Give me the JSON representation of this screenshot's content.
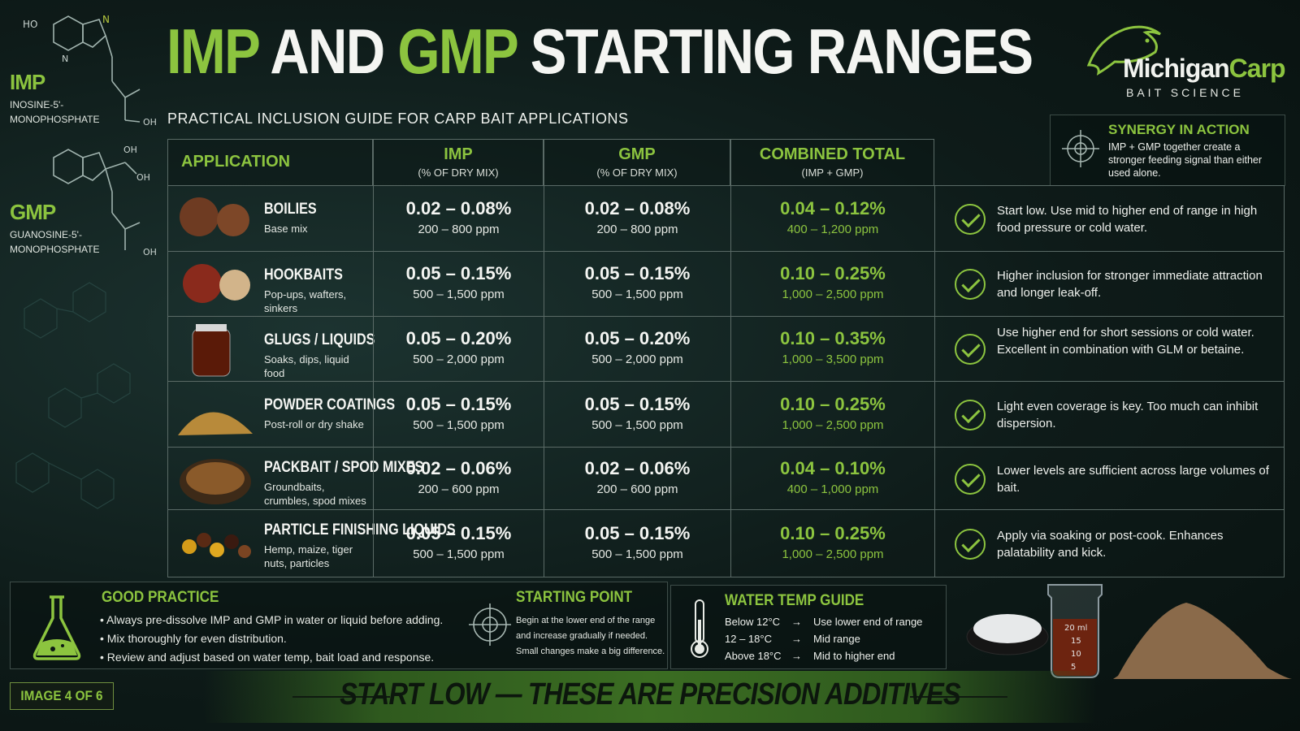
{
  "title": {
    "part1": "IMP",
    "part2": "AND",
    "part3": "GMP",
    "part4": "STARTING RANGES"
  },
  "subtitle": "PRACTICAL INCLUSION GUIDE FOR CARP BAIT APPLICATIONS",
  "brand": {
    "name_a": "Michigan",
    "name_b": "Carp",
    "tagline": "BAIT SCIENCE"
  },
  "molecules": [
    {
      "label": "IMP",
      "name_line1": "INOSINE-5'-",
      "name_line2": "MONOPHOSPHATE"
    },
    {
      "label": "GMP",
      "name_line1": "GUANOSINE-5'-",
      "name_line2": "MONOPHOSPHATE"
    }
  ],
  "synergy": {
    "title": "SYNERGY IN ACTION",
    "text": "IMP + GMP together create a stronger feeding signal than either used alone."
  },
  "table": {
    "headers": [
      {
        "title": "APPLICATION",
        "sub": ""
      },
      {
        "title": "IMP",
        "sub": "(% OF DRY MIX)"
      },
      {
        "title": "GMP",
        "sub": "(% OF DRY MIX)"
      },
      {
        "title": "COMBINED TOTAL",
        "sub": "(IMP + GMP)"
      }
    ],
    "rows": [
      {
        "name": "BOILIES",
        "sub": "Base mix",
        "imp_pct": "0.02 – 0.08%",
        "imp_ppm": "200 – 800 ppm",
        "gmp_pct": "0.02 – 0.08%",
        "gmp_ppm": "200 – 800 ppm",
        "tot_pct": "0.04 – 0.12%",
        "tot_ppm": "400 – 1,200 ppm",
        "note": "Start low. Use mid to higher end of range in high food pressure or cold water."
      },
      {
        "name": "HOOKBAITS",
        "sub": "Pop-ups, wafters, sinkers",
        "imp_pct": "0.05 – 0.15%",
        "imp_ppm": "500 – 1,500 ppm",
        "gmp_pct": "0.05 – 0.15%",
        "gmp_ppm": "500 – 1,500 ppm",
        "tot_pct": "0.10 – 0.25%",
        "tot_ppm": "1,000 – 2,500 ppm",
        "note": "Higher inclusion for stronger immediate attraction and longer leak-off."
      },
      {
        "name": "GLUGS / LIQUIDS",
        "sub": "Soaks, dips, liquid food",
        "imp_pct": "0.05 – 0.20%",
        "imp_ppm": "500 – 2,000 ppm",
        "gmp_pct": "0.05 – 0.20%",
        "gmp_ppm": "500 – 2,000 ppm",
        "tot_pct": "0.10 – 0.35%",
        "tot_ppm": "1,000 – 3,500 ppm",
        "note": "Use higher end for short sessions or cold water. Excellent in combination with GLM or betaine."
      },
      {
        "name": "POWDER COATINGS",
        "sub": "Post-roll or dry shake",
        "imp_pct": "0.05 – 0.15%",
        "imp_ppm": "500 – 1,500 ppm",
        "gmp_pct": "0.05 – 0.15%",
        "gmp_ppm": "500 – 1,500 ppm",
        "tot_pct": "0.10 – 0.25%",
        "tot_ppm": "1,000 – 2,500 ppm",
        "note": "Light even coverage is key. Too much can inhibit dispersion."
      },
      {
        "name": "PACKBAIT / SPOD MIXES",
        "sub": "Groundbaits, crumbles, spod mixes",
        "imp_pct": "0.02 – 0.06%",
        "imp_ppm": "200 – 600 ppm",
        "gmp_pct": "0.02 – 0.06%",
        "gmp_ppm": "200 – 600 ppm",
        "tot_pct": "0.04 – 0.10%",
        "tot_ppm": "400 – 1,000 ppm",
        "note": "Lower levels are sufficient across large volumes of bait."
      },
      {
        "name": "PARTICLE FINISHING LIQUIDS",
        "sub": "Hemp, maize, tiger nuts, particles",
        "imp_pct": "0.05 – 0.15%",
        "imp_ppm": "500 – 1,500 ppm",
        "gmp_pct": "0.05 – 0.15%",
        "gmp_ppm": "500 – 1,500 ppm",
        "tot_pct": "0.10 – 0.25%",
        "tot_ppm": "1,000 – 2,500 ppm",
        "note": "Apply via soaking or post-cook. Enhances palatability and kick."
      }
    ]
  },
  "good_practice": {
    "title": "GOOD PRACTICE",
    "bullets": [
      "• Always pre-dissolve IMP and GMP in water or liquid before adding.",
      "• Mix thoroughly for even distribution.",
      "• Review and adjust based on water temp, bait load and response."
    ]
  },
  "starting_point": {
    "title": "STARTING POINT",
    "lines": [
      "Begin at the lower end of the range",
      "and increase gradually if needed.",
      "Small changes make a big difference."
    ]
  },
  "water_temp": {
    "title": "WATER TEMP GUIDE",
    "rows": [
      {
        "temp": "Below 12°C",
        "arrow": "→",
        "advice": "Use lower end of range"
      },
      {
        "temp": "12 – 18°C",
        "arrow": "→",
        "advice": "Mid range"
      },
      {
        "temp": "Above 18°C",
        "arrow": "→",
        "advice": "Mid to higher end"
      }
    ]
  },
  "beaker_marks": [
    "20 ml",
    "15",
    "10",
    "5"
  ],
  "banner": "START LOW — THESE ARE PRECISION ADDITIVES",
  "badge": "IMAGE 4 OF 6",
  "colors": {
    "accent": "#8cc43f",
    "background": "#0c1715",
    "text": "#f4f5f2"
  }
}
